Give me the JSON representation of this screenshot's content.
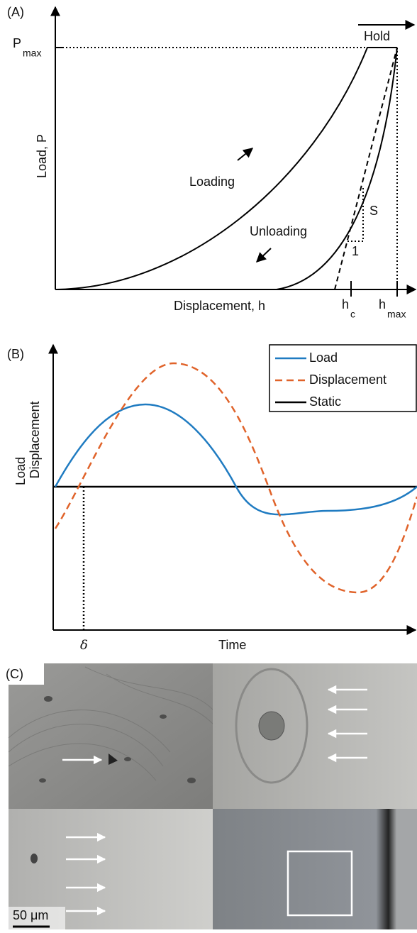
{
  "panel_a": {
    "label": "(A)",
    "p_max": {
      "symbol": "P",
      "subscript": "max"
    },
    "hold": "Hold",
    "y_axis": "Load, P",
    "loading": "Loading",
    "unloading": "Unloading",
    "slope": "S",
    "unit": "1",
    "x_axis": "Displacement, h",
    "h_c": {
      "symbol": "h",
      "subscript": "c"
    },
    "h_max": {
      "symbol": "h",
      "subscript": "max"
    }
  },
  "panel_b": {
    "label": "(B)",
    "legend": [
      "Load",
      "Displacement",
      "Static"
    ],
    "y_axis": [
      "Load",
      "Displacement"
    ],
    "delta": "δ",
    "x_axis": "Time"
  },
  "panel_c": {
    "label": "(C)",
    "scale_bar": "50 μm"
  }
}
